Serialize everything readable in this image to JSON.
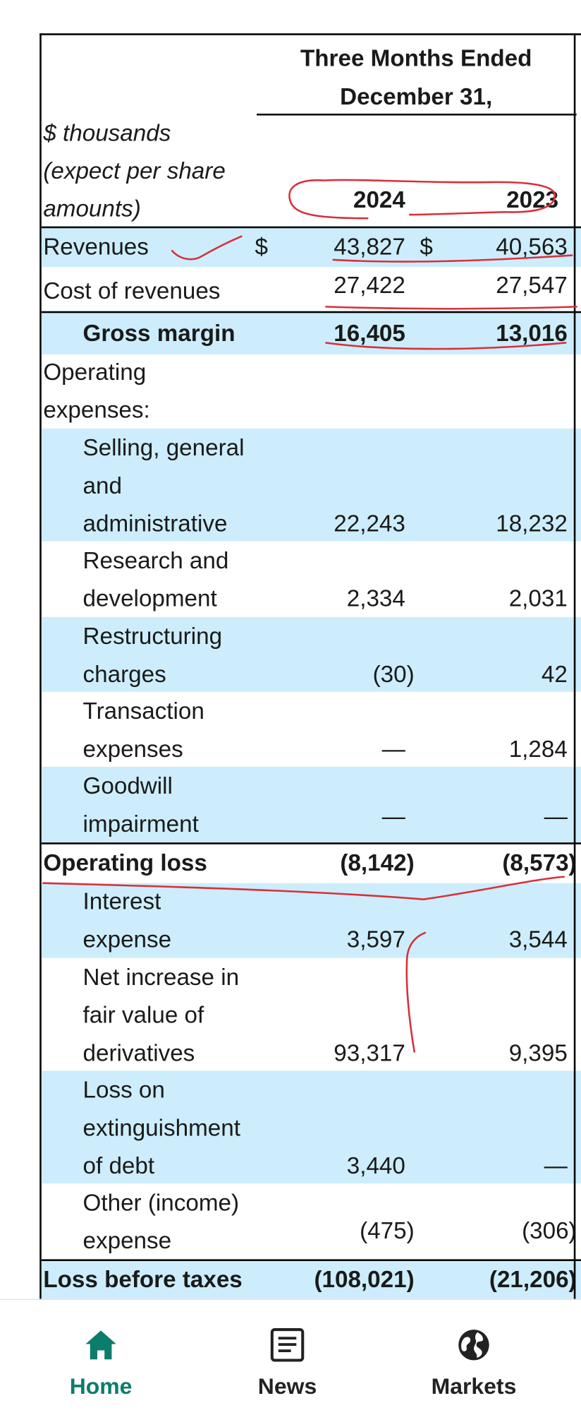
{
  "header": {
    "period_line1": "Three Months Ended",
    "period_line2": "December 31,",
    "units_line1": "$ thousands",
    "units_line2": "(expect per share",
    "units_line3": "amounts)",
    "year_current": "2024",
    "year_prior": "2023"
  },
  "currency_symbol": "$",
  "rows": [
    {
      "label": [
        "Revenues"
      ],
      "v2024": "43,827",
      "v2023": "40,563"
    },
    {
      "label": [
        "Cost of revenues"
      ],
      "v2024": "27,422",
      "v2023": "27,547"
    },
    {
      "label": [
        "Gross margin"
      ],
      "v2024": "16,405",
      "v2023": "13,016"
    },
    {
      "label": [
        "Operating",
        "expenses:"
      ]
    },
    {
      "label": [
        "Selling, general",
        "and",
        "administrative"
      ],
      "v2024": "22,243",
      "v2023": "18,232"
    },
    {
      "label": [
        "Research and",
        "development"
      ],
      "v2024": "2,334",
      "v2023": "2,031"
    },
    {
      "label": [
        "Restructuring",
        "charges"
      ],
      "v2024": "(30)",
      "v2023": "42"
    },
    {
      "label": [
        "Transaction",
        "expenses"
      ],
      "v2024": "—",
      "v2023": "1,284"
    },
    {
      "label": [
        "Goodwill",
        "impairment"
      ],
      "v2024": "—",
      "v2023": "—"
    },
    {
      "label": [
        "Operating loss"
      ],
      "v2024": "(8,142)",
      "v2023": "(8,573)"
    },
    {
      "label": [
        "Interest",
        "expense"
      ],
      "v2024": "3,597",
      "v2023": "3,544"
    },
    {
      "label": [
        "Net increase in",
        "fair value of",
        "derivatives"
      ],
      "v2024": "93,317",
      "v2023": "9,395"
    },
    {
      "label": [
        "Loss on",
        "extinguishment",
        "of debt"
      ],
      "v2024": "3,440",
      "v2023": "—"
    },
    {
      "label": [
        "Other (income)",
        "expense"
      ],
      "v2024": "(475)",
      "v2023": "(306)"
    },
    {
      "label": [
        "Loss before taxes"
      ],
      "v2024": "(108,021)",
      "v2023": "(21,206)"
    }
  ],
  "colors": {
    "row_highlight": "#cdedfc",
    "annotation_ink": "#d8303a",
    "nav_active": "#0c7d6b"
  },
  "nav": [
    {
      "label": "Home",
      "icon": "home-icon",
      "active": true
    },
    {
      "label": "News",
      "icon": "news-icon",
      "active": false
    },
    {
      "label": "Markets",
      "icon": "globe-icon",
      "active": false
    }
  ]
}
